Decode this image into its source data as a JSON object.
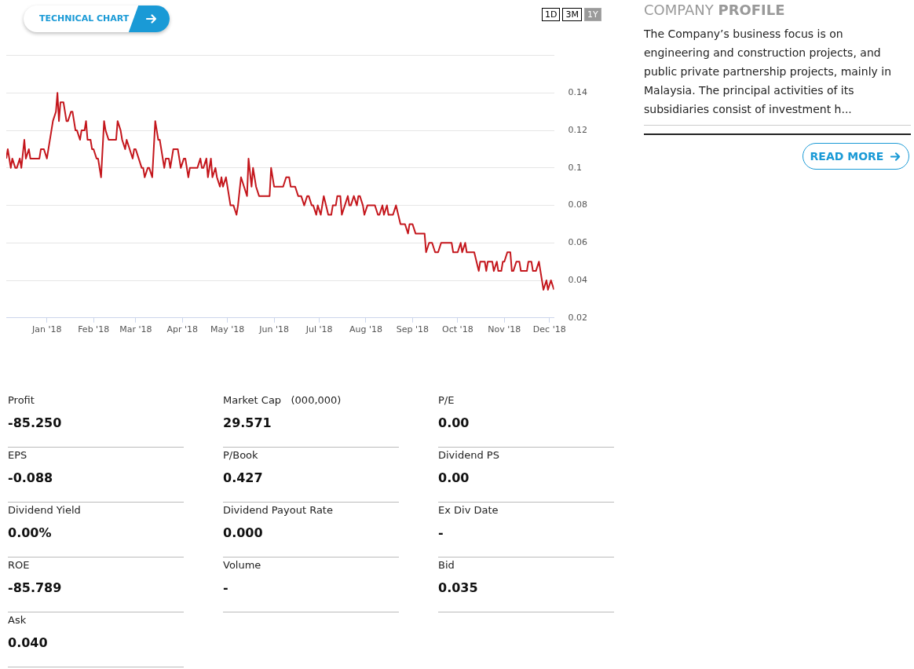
{
  "chart_data": [
    {
      "type": "line",
      "annotations": [
        "TECHNICAL CHART",
        "1D",
        "3M",
        "1Y"
      ],
      "color": "#c4161c",
      "grid": "y",
      "legend": false,
      "marker": "none",
      "line_style": "solid",
      "xlim": [
        "2017-12-05",
        "2018-12-04"
      ],
      "xticks": [
        {
          "value": "2018-01-01",
          "label": "Jan '18"
        },
        {
          "value": "2018-02-01",
          "label": "Feb '18"
        },
        {
          "value": "2018-03-01",
          "label": "Mar '18"
        },
        {
          "value": "2018-04-01",
          "label": "Apr '18"
        },
        {
          "value": "2018-05-01",
          "label": "May '18"
        },
        {
          "value": "2018-06-01",
          "label": "Jun '18"
        },
        {
          "value": "2018-07-01",
          "label": "Jul '18"
        },
        {
          "value": "2018-08-01",
          "label": "Aug '18"
        },
        {
          "value": "2018-09-01",
          "label": "Sep '18"
        },
        {
          "value": "2018-10-01",
          "label": "Oct '18"
        },
        {
          "value": "2018-11-01",
          "label": "Nov '18"
        },
        {
          "value": "2018-12-01",
          "label": "Dec '18"
        }
      ],
      "ylim": [
        0.02,
        0.16
      ],
      "yticks": [
        0.02,
        0.04,
        0.06,
        0.08,
        0.1,
        0.12,
        0.14,
        {
          "value": 0.16,
          "label": null
        }
      ],
      "x": [
        "2017-12-05",
        "2017-12-06",
        "2017-12-08",
        "2017-12-09",
        "2017-12-11",
        "2017-12-12",
        "2017-12-14",
        "2017-12-15",
        "2017-12-17",
        "2017-12-18",
        "2017-12-20",
        "2017-12-21",
        "2017-12-27",
        "2017-12-28",
        "2017-12-30",
        "2018-01-01",
        "2018-01-02",
        "2018-01-04",
        "2018-01-05",
        "2018-01-07",
        "2018-01-08",
        "2018-01-09",
        "2018-01-10",
        "2018-01-12",
        "2018-01-14",
        "2018-01-15",
        "2018-01-17",
        "2018-01-18",
        "2018-01-20",
        "2018-01-21",
        "2018-01-23",
        "2018-01-24",
        "2018-01-26",
        "2018-01-27",
        "2018-01-28",
        "2018-01-30",
        "2018-01-31",
        "2018-02-01",
        "2018-02-03",
        "2018-02-04",
        "2018-02-06",
        "2018-02-08",
        "2018-02-09",
        "2018-02-11",
        "2018-02-16",
        "2018-02-17",
        "2018-02-19",
        "2018-02-20",
        "2018-02-22",
        "2018-02-23",
        "2018-02-25",
        "2018-02-27",
        "2018-02-28",
        "2018-03-01",
        "2018-03-03",
        "2018-03-05",
        "2018-03-06",
        "2018-03-07",
        "2018-03-09",
        "2018-03-10",
        "2018-03-12",
        "2018-03-13",
        "2018-03-14",
        "2018-03-16",
        "2018-03-17",
        "2018-03-19",
        "2018-03-20",
        "2018-03-21",
        "2018-03-23",
        "2018-03-24",
        "2018-03-26",
        "2018-03-29",
        "2018-03-30",
        "2018-03-31",
        "2018-04-02",
        "2018-04-03",
        "2018-04-05",
        "2018-04-06",
        "2018-04-11",
        "2018-04-13",
        "2018-04-14",
        "2018-04-15",
        "2018-04-17",
        "2018-04-18",
        "2018-04-20",
        "2018-04-21",
        "2018-04-23",
        "2018-04-24",
        "2018-04-26",
        "2018-04-27",
        "2018-04-28",
        "2018-04-30",
        "2018-05-02",
        "2018-05-03",
        "2018-05-05",
        "2018-05-07",
        "2018-05-08",
        "2018-05-10",
        "2018-05-14",
        "2018-05-15",
        "2018-05-17",
        "2018-05-18",
        "2018-05-20",
        "2018-05-22",
        "2018-05-29",
        "2018-05-30",
        "2018-06-01",
        "2018-06-07",
        "2018-06-09",
        "2018-06-11",
        "2018-06-12",
        "2018-06-15",
        "2018-06-17",
        "2018-06-19",
        "2018-06-21",
        "2018-06-23",
        "2018-06-24",
        "2018-06-26",
        "2018-06-27",
        "2018-06-29",
        "2018-06-30",
        "2018-07-02",
        "2018-07-04",
        "2018-07-07",
        "2018-07-09",
        "2018-07-10",
        "2018-07-12",
        "2018-07-13",
        "2018-07-15",
        "2018-07-16",
        "2018-07-18",
        "2018-07-20",
        "2018-07-21",
        "2018-07-22",
        "2018-07-24",
        "2018-07-26",
        "2018-07-27",
        "2018-07-28",
        "2018-07-30",
        "2018-07-31",
        "2018-08-02",
        "2018-08-07",
        "2018-08-09",
        "2018-08-10",
        "2018-08-12",
        "2018-08-13",
        "2018-08-15",
        "2018-08-16",
        "2018-08-19",
        "2018-08-21",
        "2018-08-24",
        "2018-08-27",
        "2018-08-29",
        "2018-08-30",
        "2018-09-01",
        "2018-09-03",
        "2018-09-09",
        "2018-09-10",
        "2018-09-12",
        "2018-09-14",
        "2018-09-16",
        "2018-09-18",
        "2018-09-20",
        "2018-09-27",
        "2018-09-28",
        "2018-10-01",
        "2018-10-03",
        "2018-10-04",
        "2018-10-06",
        "2018-10-07",
        "2018-10-12",
        "2018-10-15",
        "2018-10-16",
        "2018-10-19",
        "2018-10-20",
        "2018-10-21",
        "2018-10-24",
        "2018-10-25",
        "2018-10-27",
        "2018-10-28",
        "2018-10-30",
        "2018-10-31",
        "2018-11-01",
        "2018-11-03",
        "2018-11-05",
        "2018-11-06",
        "2018-11-07",
        "2018-11-09",
        "2018-11-11",
        "2018-11-12",
        "2018-11-16",
        "2018-11-17",
        "2018-11-19",
        "2018-11-20",
        "2018-11-22",
        "2018-11-24",
        "2018-11-26",
        "2018-11-27",
        "2018-11-29",
        "2018-11-30",
        "2018-12-02",
        "2018-12-04"
      ],
      "values": [
        0.105,
        0.11,
        0.1,
        0.105,
        0.1,
        0.1,
        0.105,
        0.1,
        0.115,
        0.105,
        0.11,
        0.105,
        0.105,
        0.11,
        0.11,
        0.105,
        0.11,
        0.12,
        0.125,
        0.13,
        0.14,
        0.125,
        0.135,
        0.135,
        0.125,
        0.125,
        0.13,
        0.13,
        0.12,
        0.12,
        0.115,
        0.12,
        0.12,
        0.125,
        0.115,
        0.115,
        0.11,
        0.11,
        0.105,
        0.105,
        0.095,
        0.125,
        0.12,
        0.115,
        0.115,
        0.125,
        0.12,
        0.115,
        0.11,
        0.115,
        0.11,
        0.105,
        0.11,
        0.11,
        0.105,
        0.1,
        0.1,
        0.095,
        0.1,
        0.1,
        0.095,
        0.11,
        0.125,
        0.115,
        0.115,
        0.105,
        0.1,
        0.105,
        0.105,
        0.1,
        0.11,
        0.11,
        0.105,
        0.1,
        0.105,
        0.105,
        0.095,
        0.1,
        0.1,
        0.105,
        0.1,
        0.1,
        0.105,
        0.095,
        0.105,
        0.095,
        0.1,
        0.095,
        0.09,
        0.095,
        0.09,
        0.095,
        0.085,
        0.08,
        0.08,
        0.075,
        0.08,
        0.095,
        0.085,
        0.105,
        0.09,
        0.1,
        0.09,
        0.085,
        0.085,
        0.1,
        0.09,
        0.09,
        0.095,
        0.095,
        0.09,
        0.09,
        0.085,
        0.085,
        0.08,
        0.085,
        0.085,
        0.08,
        0.08,
        0.075,
        0.08,
        0.075,
        0.085,
        0.075,
        0.075,
        0.08,
        0.08,
        0.085,
        0.085,
        0.075,
        0.08,
        0.085,
        0.08,
        0.08,
        0.085,
        0.08,
        0.085,
        0.085,
        0.08,
        0.075,
        0.08,
        0.08,
        0.075,
        0.075,
        0.08,
        0.075,
        0.08,
        0.075,
        0.075,
        0.08,
        0.07,
        0.07,
        0.065,
        0.07,
        0.07,
        0.065,
        0.065,
        0.055,
        0.06,
        0.06,
        0.055,
        0.055,
        0.06,
        0.06,
        0.055,
        0.055,
        0.06,
        0.055,
        0.06,
        0.055,
        0.055,
        0.045,
        0.05,
        0.05,
        0.045,
        0.05,
        0.05,
        0.045,
        0.05,
        0.045,
        0.045,
        0.05,
        0.05,
        0.055,
        0.055,
        0.045,
        0.045,
        0.05,
        0.05,
        0.045,
        0.045,
        0.05,
        0.05,
        0.045,
        0.045,
        0.05,
        0.04,
        0.035,
        0.04,
        0.035,
        0.04,
        0.035
      ]
    },
    {
      "type": "other",
      "title": "COMPANY PROFILE",
      "subtitle": "The Company’s business focus is on engineering and construction projects, and public private partnership projects, mainly in Malaysia. The principal activities of its subsidiaries consist of investment h...",
      "annotations": [
        "READ MORE"
      ]
    },
    {
      "type": "other",
      "categories": [
        "Profit",
        "Market Cap   (000,000)",
        "P/E",
        "EPS",
        "P/Book",
        "Dividend PS",
        "Dividend Yield",
        "Dividend Payout Rate",
        "Ex Div Date",
        "ROE",
        "Volume",
        "Bid",
        "Ask"
      ],
      "value_labels": [
        "-85.250",
        "29.571",
        "0.00",
        "-0.088",
        "0.427",
        "0.00",
        "0.00%",
        "0.000",
        "-",
        "-85.789",
        "-",
        "0.035",
        "0.040"
      ]
    }
  ]
}
